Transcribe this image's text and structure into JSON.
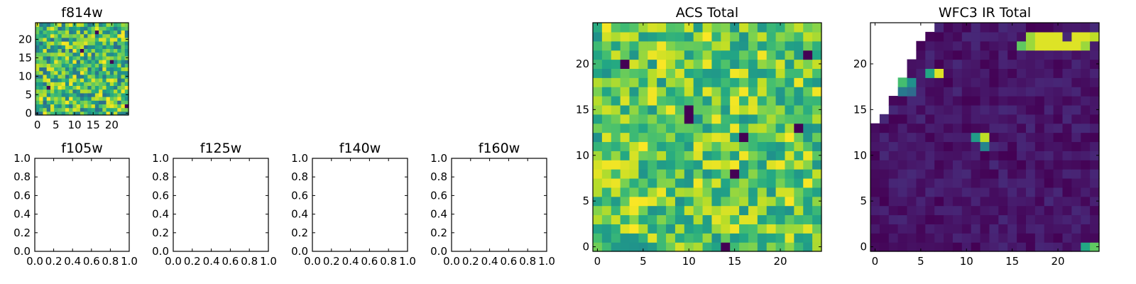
{
  "chart_data": [
    {
      "id": "f814w",
      "type": "heatmap",
      "title": "f814w",
      "grid_size": 25,
      "colormap": "viridis",
      "xticks": [
        "0",
        "5",
        "10",
        "15",
        "20"
      ],
      "yticks": [
        "0",
        "5",
        "10",
        "15",
        "20"
      ],
      "seed": 7,
      "value_range": [
        0.35,
        1.0
      ],
      "dark_cells": [
        [
          24,
          2
        ],
        [
          3,
          7
        ],
        [
          12,
          17
        ],
        [
          16,
          22
        ],
        [
          20,
          14
        ]
      ],
      "blank_region": null,
      "bright_cells": []
    },
    {
      "id": "f105w",
      "type": "empty",
      "title": "f105w",
      "xticks": [
        "0.0",
        "0.2",
        "0.4",
        "0.6",
        "0.8",
        "1.0"
      ],
      "yticks": [
        "0.0",
        "0.2",
        "0.4",
        "0.6",
        "0.8",
        "1.0"
      ]
    },
    {
      "id": "f125w",
      "type": "empty",
      "title": "f125w",
      "xticks": [
        "0.0",
        "0.2",
        "0.4",
        "0.6",
        "0.8",
        "1.0"
      ],
      "yticks": [
        "0.0",
        "0.2",
        "0.4",
        "0.6",
        "0.8",
        "1.0"
      ]
    },
    {
      "id": "f140w",
      "type": "empty",
      "title": "f140w",
      "xticks": [
        "0.0",
        "0.2",
        "0.4",
        "0.6",
        "0.8",
        "1.0"
      ],
      "yticks": [
        "0.0",
        "0.2",
        "0.4",
        "0.6",
        "0.8",
        "1.0"
      ]
    },
    {
      "id": "f160w",
      "type": "empty",
      "title": "f160w",
      "xticks": [
        "0.0",
        "0.2",
        "0.4",
        "0.6",
        "0.8",
        "1.0"
      ],
      "yticks": [
        "0.0",
        "0.2",
        "0.4",
        "0.6",
        "0.8",
        "1.0"
      ]
    },
    {
      "id": "acs_total",
      "type": "heatmap",
      "title": "ACS Total",
      "grid_size": 25,
      "colormap": "viridis",
      "xticks": [
        "0",
        "5",
        "10",
        "15",
        "20"
      ],
      "yticks": [
        "0",
        "5",
        "10",
        "15",
        "20"
      ],
      "seed": 13,
      "value_range": [
        0.5,
        1.0
      ],
      "dark_cells": [
        [
          14,
          0
        ],
        [
          3,
          20
        ],
        [
          10,
          14
        ],
        [
          10,
          15
        ],
        [
          16,
          12
        ],
        [
          15,
          8
        ],
        [
          22,
          13
        ],
        [
          23,
          21
        ]
      ],
      "blank_region": null,
      "bright_cells": []
    },
    {
      "id": "wfc3_ir_total",
      "type": "heatmap",
      "title": "WFC3 IR Total",
      "grid_size": 25,
      "colormap": "viridis",
      "xticks": [
        "0",
        "5",
        "10",
        "15",
        "20"
      ],
      "yticks": [
        "0",
        "5",
        "10",
        "15",
        "20"
      ],
      "seed": 29,
      "value_range": [
        0.0,
        0.12
      ],
      "dark_cells": [],
      "blank_region": [
        [
          24,
          6
        ],
        [
          23,
          5
        ],
        [
          22,
          4
        ],
        [
          21,
          4
        ],
        [
          20,
          3
        ],
        [
          19,
          3
        ],
        [
          18,
          2
        ],
        [
          17,
          2
        ],
        [
          16,
          1
        ],
        [
          15,
          1
        ],
        [
          14,
          0
        ]
      ],
      "bright_cells": [
        [
          1,
          22,
          0.95
        ],
        [
          1,
          23,
          0.95
        ],
        [
          1,
          24,
          0.9
        ],
        [
          1,
          17,
          0.85
        ],
        [
          1,
          18,
          0.95
        ],
        [
          1,
          19,
          0.95
        ],
        [
          1,
          20,
          0.95
        ],
        [
          2,
          18,
          0.95
        ],
        [
          2,
          19,
          0.95
        ],
        [
          2,
          20,
          0.95
        ],
        [
          2,
          21,
          0.95
        ],
        [
          2,
          22,
          0.95
        ],
        [
          2,
          23,
          0.85
        ],
        [
          2,
          16,
          0.75
        ],
        [
          2,
          17,
          0.85
        ],
        [
          12,
          12,
          0.9
        ],
        [
          13,
          12,
          0.45
        ],
        [
          12,
          11,
          0.55
        ],
        [
          5,
          6,
          0.6
        ],
        [
          5,
          7,
          0.95
        ],
        [
          6,
          3,
          0.7
        ],
        [
          5,
          3,
          0.45
        ],
        [
          6,
          4,
          0.5
        ],
        [
          7,
          4,
          0.35
        ],
        [
          7,
          3,
          0.4
        ],
        [
          24,
          24,
          0.75
        ],
        [
          24,
          23,
          0.6
        ]
      ]
    }
  ]
}
